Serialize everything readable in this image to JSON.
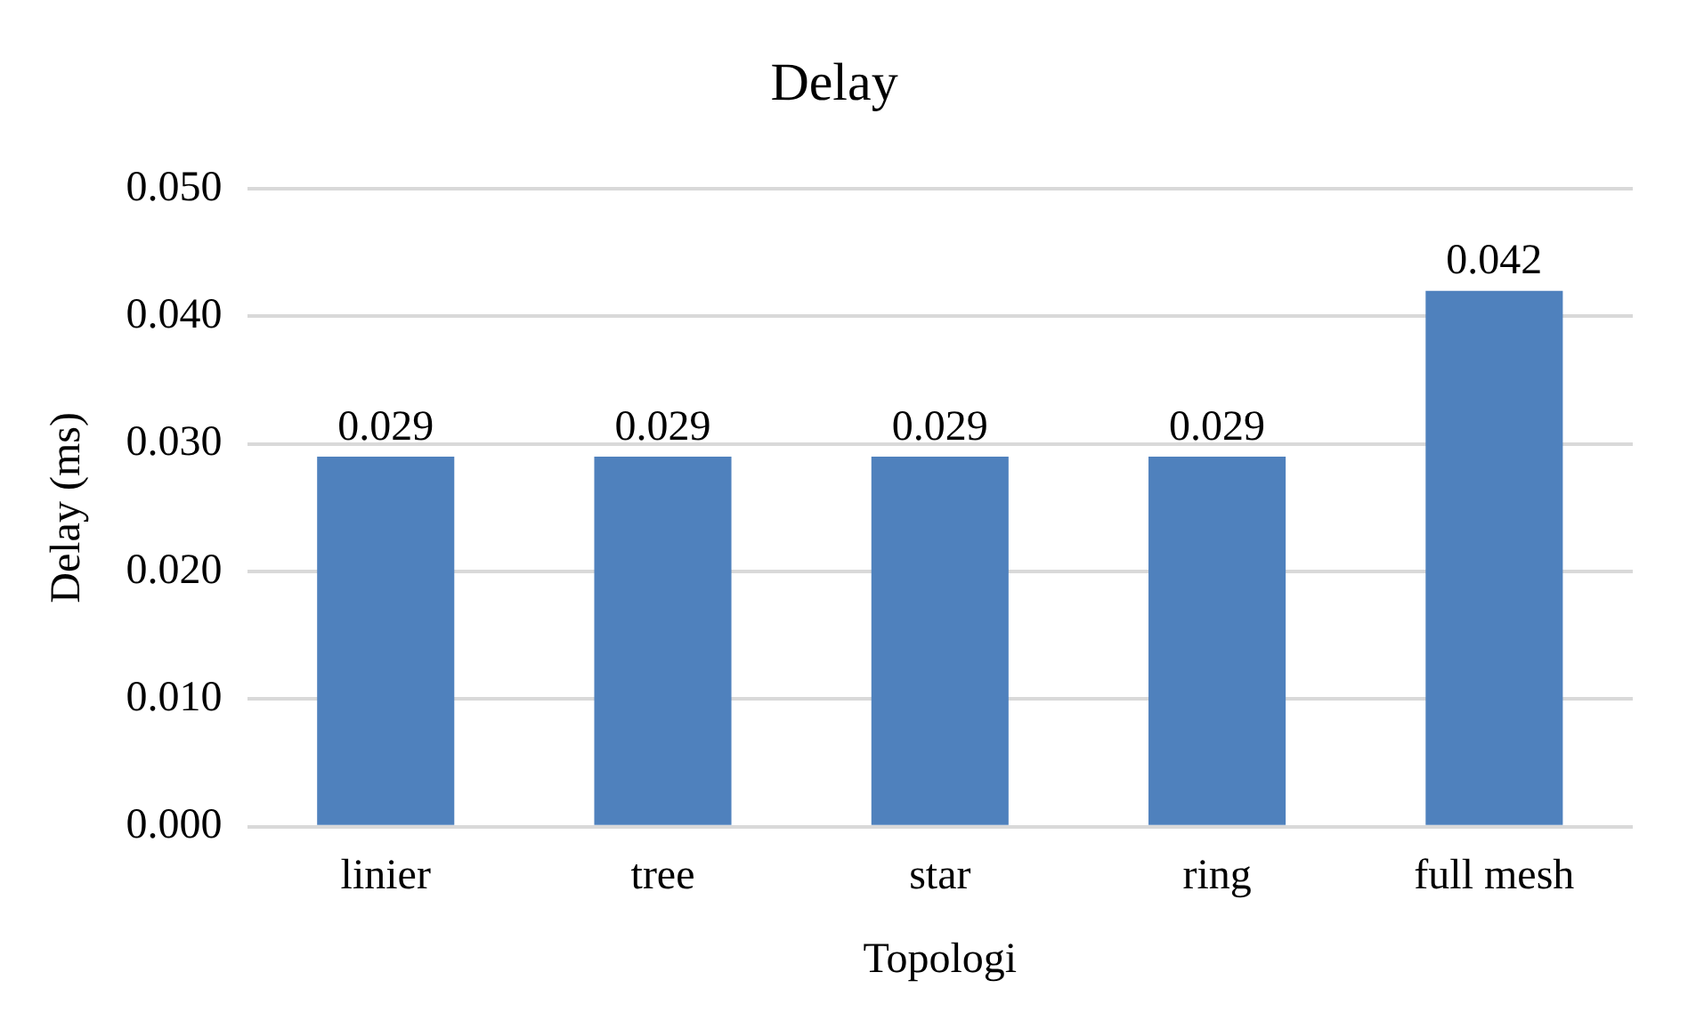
{
  "chart_data": {
    "type": "bar",
    "title": "Delay",
    "xlabel": "Topologi",
    "ylabel": "Delay (ms)",
    "categories": [
      "linier",
      "tree",
      "star",
      "ring",
      "full mesh"
    ],
    "values": [
      0.029,
      0.029,
      0.029,
      0.029,
      0.042
    ],
    "color": "#4f81bd",
    "ylim": [
      0,
      0.05
    ],
    "yticks": [
      {
        "value": 0,
        "label": "0.000"
      },
      {
        "value": 0.01,
        "label": "0.010"
      },
      {
        "value": 0.02,
        "label": "0.020"
      },
      {
        "value": 0.03,
        "label": "0.030"
      },
      {
        "value": 0.04,
        "label": "0.040"
      },
      {
        "value": 0.05,
        "label": "0.050"
      }
    ],
    "grid": "y",
    "data_labels": true
  }
}
